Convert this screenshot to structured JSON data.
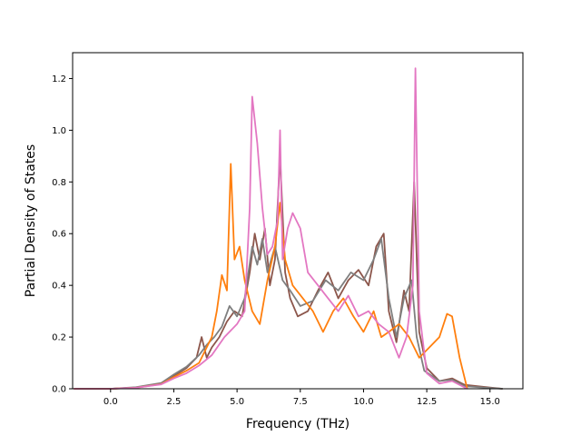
{
  "chart_data": {
    "type": "line",
    "title": "",
    "xlabel": "Frequency (THz)",
    "ylabel": "Partial Density of States",
    "xlim": [
      -1.5,
      16.3
    ],
    "ylim": [
      0.0,
      1.3
    ],
    "xticks": [
      "0.0",
      "2.5",
      "5.0",
      "7.5",
      "10.0",
      "12.5",
      "15.0"
    ],
    "yticks": [
      "0.0",
      "0.2",
      "0.4",
      "0.6",
      "0.8",
      "1.0",
      "1.2"
    ],
    "grid": false,
    "legend": "none",
    "series": [
      {
        "color": "#8c564b",
        "points": [
          [
            -1.45,
            0
          ],
          [
            0,
            0
          ],
          [
            1,
            0.005
          ],
          [
            2,
            0.02
          ],
          [
            2.5,
            0.05
          ],
          [
            3,
            0.08
          ],
          [
            3.4,
            0.12
          ],
          [
            3.6,
            0.2
          ],
          [
            3.8,
            0.12
          ],
          [
            4,
            0.16
          ],
          [
            4.3,
            0.2
          ],
          [
            4.6,
            0.26
          ],
          [
            4.9,
            0.3
          ],
          [
            5.2,
            0.28
          ],
          [
            5.5,
            0.45
          ],
          [
            5.7,
            0.6
          ],
          [
            5.9,
            0.5
          ],
          [
            6.1,
            0.62
          ],
          [
            6.3,
            0.4
          ],
          [
            6.5,
            0.5
          ],
          [
            6.7,
            0.9
          ],
          [
            6.9,
            0.45
          ],
          [
            7.1,
            0.35
          ],
          [
            7.4,
            0.28
          ],
          [
            7.8,
            0.3
          ],
          [
            8.2,
            0.38
          ],
          [
            8.6,
            0.45
          ],
          [
            9,
            0.35
          ],
          [
            9.4,
            0.42
          ],
          [
            9.8,
            0.46
          ],
          [
            10.2,
            0.4
          ],
          [
            10.5,
            0.55
          ],
          [
            10.8,
            0.6
          ],
          [
            11,
            0.3
          ],
          [
            11.3,
            0.18
          ],
          [
            11.6,
            0.38
          ],
          [
            11.8,
            0.3
          ],
          [
            12,
            0.8
          ],
          [
            12.2,
            0.22
          ],
          [
            12.5,
            0.08
          ],
          [
            13,
            0.03
          ],
          [
            13.5,
            0.04
          ],
          [
            14,
            0.015
          ],
          [
            15,
            0.005
          ],
          [
            15.5,
            0
          ]
        ]
      },
      {
        "color": "#7f7f7f",
        "points": [
          [
            -1.45,
            0
          ],
          [
            0,
            0
          ],
          [
            1,
            0.006
          ],
          [
            2,
            0.022
          ],
          [
            2.5,
            0.055
          ],
          [
            3,
            0.085
          ],
          [
            3.5,
            0.13
          ],
          [
            3.8,
            0.17
          ],
          [
            4.1,
            0.2
          ],
          [
            4.4,
            0.24
          ],
          [
            4.7,
            0.32
          ],
          [
            5,
            0.28
          ],
          [
            5.3,
            0.35
          ],
          [
            5.6,
            0.55
          ],
          [
            5.8,
            0.48
          ],
          [
            6,
            0.58
          ],
          [
            6.2,
            0.45
          ],
          [
            6.5,
            0.55
          ],
          [
            6.8,
            0.42
          ],
          [
            7.1,
            0.38
          ],
          [
            7.5,
            0.32
          ],
          [
            8,
            0.34
          ],
          [
            8.5,
            0.42
          ],
          [
            9,
            0.38
          ],
          [
            9.5,
            0.45
          ],
          [
            10,
            0.42
          ],
          [
            10.4,
            0.5
          ],
          [
            10.7,
            0.58
          ],
          [
            11,
            0.35
          ],
          [
            11.3,
            0.2
          ],
          [
            11.6,
            0.35
          ],
          [
            11.9,
            0.42
          ],
          [
            12.1,
            0.2
          ],
          [
            12.4,
            0.07
          ],
          [
            13,
            0.03
          ],
          [
            13.5,
            0.035
          ],
          [
            14,
            0.01
          ],
          [
            15,
            0.003
          ],
          [
            15.5,
            0
          ]
        ]
      },
      {
        "color": "#ff7f0e",
        "points": [
          [
            -1.45,
            0
          ],
          [
            0,
            0
          ],
          [
            1,
            0.004
          ],
          [
            2,
            0.018
          ],
          [
            2.5,
            0.045
          ],
          [
            3,
            0.07
          ],
          [
            3.5,
            0.1
          ],
          [
            4,
            0.2
          ],
          [
            4.2,
            0.3
          ],
          [
            4.4,
            0.44
          ],
          [
            4.6,
            0.38
          ],
          [
            4.75,
            0.87
          ],
          [
            4.9,
            0.5
          ],
          [
            5.1,
            0.55
          ],
          [
            5.3,
            0.42
          ],
          [
            5.6,
            0.3
          ],
          [
            5.9,
            0.25
          ],
          [
            6.2,
            0.42
          ],
          [
            6.5,
            0.55
          ],
          [
            6.7,
            0.72
          ],
          [
            6.9,
            0.5
          ],
          [
            7.2,
            0.4
          ],
          [
            7.6,
            0.35
          ],
          [
            8,
            0.3
          ],
          [
            8.4,
            0.22
          ],
          [
            8.8,
            0.3
          ],
          [
            9.2,
            0.35
          ],
          [
            9.6,
            0.28
          ],
          [
            10,
            0.22
          ],
          [
            10.4,
            0.3
          ],
          [
            10.7,
            0.2
          ],
          [
            11,
            0.22
          ],
          [
            11.4,
            0.25
          ],
          [
            11.8,
            0.2
          ],
          [
            12.2,
            0.12
          ],
          [
            12.6,
            0.16
          ],
          [
            13,
            0.2
          ],
          [
            13.3,
            0.29
          ],
          [
            13.5,
            0.28
          ],
          [
            13.8,
            0.12
          ],
          [
            14.1,
            0
          ]
        ]
      },
      {
        "color": "#e377c2",
        "points": [
          [
            -1.45,
            0
          ],
          [
            0,
            0
          ],
          [
            1,
            0.004
          ],
          [
            2,
            0.017
          ],
          [
            2.5,
            0.04
          ],
          [
            3,
            0.06
          ],
          [
            3.5,
            0.09
          ],
          [
            4,
            0.13
          ],
          [
            4.5,
            0.2
          ],
          [
            5,
            0.25
          ],
          [
            5.3,
            0.3
          ],
          [
            5.5,
            0.7
          ],
          [
            5.6,
            1.13
          ],
          [
            5.8,
            0.95
          ],
          [
            6,
            0.7
          ],
          [
            6.2,
            0.52
          ],
          [
            6.4,
            0.55
          ],
          [
            6.6,
            0.65
          ],
          [
            6.7,
            1.0
          ],
          [
            6.8,
            0.5
          ],
          [
            7,
            0.62
          ],
          [
            7.2,
            0.68
          ],
          [
            7.5,
            0.62
          ],
          [
            7.8,
            0.45
          ],
          [
            8.2,
            0.4
          ],
          [
            8.6,
            0.35
          ],
          [
            9,
            0.3
          ],
          [
            9.4,
            0.36
          ],
          [
            9.8,
            0.28
          ],
          [
            10.2,
            0.3
          ],
          [
            10.6,
            0.25
          ],
          [
            11,
            0.22
          ],
          [
            11.4,
            0.12
          ],
          [
            11.7,
            0.2
          ],
          [
            11.95,
            0.4
          ],
          [
            12.05,
            1.24
          ],
          [
            12.2,
            0.3
          ],
          [
            12.5,
            0.06
          ],
          [
            13,
            0.02
          ],
          [
            13.5,
            0.03
          ],
          [
            14,
            0.005
          ],
          [
            14.1,
            0
          ]
        ]
      }
    ]
  }
}
